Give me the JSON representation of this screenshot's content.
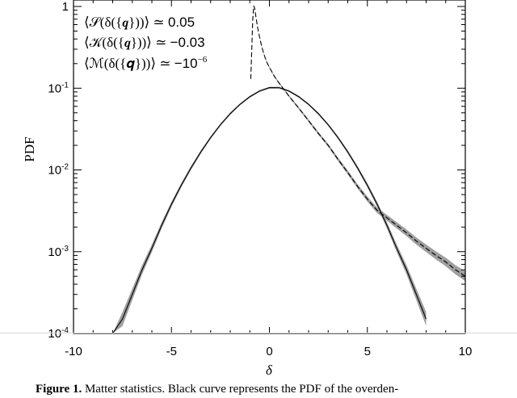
{
  "chart_data": {
    "type": "line",
    "xlabel": "δ",
    "ylabel": "PDF",
    "xlim": [
      -10,
      10
    ],
    "ylim": [
      0.0001,
      1.2
    ],
    "yscale": "log",
    "grid": false,
    "x_ticks": [
      -10,
      -5,
      0,
      5,
      10
    ],
    "x_tick_labels": [
      "-10",
      "-5",
      "0",
      "5",
      "10"
    ],
    "y_ticks": [
      0.0001,
      0.001,
      0.01,
      0.1,
      1
    ],
    "y_tick_labels": [
      {
        "base": "10",
        "exp": "-4"
      },
      {
        "base": "10",
        "exp": "-3"
      },
      {
        "base": "10",
        "exp": "-2"
      },
      {
        "base": "10",
        "exp": "-1"
      },
      {
        "base": "1",
        "exp": ""
      }
    ],
    "annotations": [
      {
        "lhs": "⟨𝒮(δ({𝒒}))⟩ ≃ ",
        "rhs": "0.05"
      },
      {
        "lhs": "⟨𝒦(δ({𝒒}))⟩ ≃ ",
        "rhs": "−0.03"
      },
      {
        "lhs": "⟨ℳ(δ({𝒒}))⟩ ≃ ",
        "rhs": "−10",
        "sup": "−6"
      }
    ],
    "series": [
      {
        "style": "solid",
        "color": "#000000",
        "x": [
          -8.0,
          -7.5,
          -7.0,
          -6.5,
          -6.0,
          -5.5,
          -5.0,
          -4.5,
          -4.0,
          -3.5,
          -3.0,
          -2.5,
          -2.0,
          -1.5,
          -1.0,
          -0.5,
          0.0,
          0.5,
          1.0,
          1.5,
          2.0,
          2.5,
          3.0,
          3.5,
          4.0,
          4.5,
          5.0,
          5.5,
          6.0,
          6.5,
          7.0,
          7.5,
          8.0
        ],
        "y": [
          7e-05,
          0.00015,
          0.0003,
          0.0006,
          0.0011,
          0.0021,
          0.0038,
          0.0065,
          0.0106,
          0.0166,
          0.0249,
          0.0357,
          0.0488,
          0.0635,
          0.0786,
          0.0924,
          0.1015,
          0.1014,
          0.0924,
          0.0786,
          0.0635,
          0.0488,
          0.0357,
          0.0249,
          0.0166,
          0.0106,
          0.0065,
          0.0038,
          0.0021,
          0.0011,
          0.0006,
          0.0003,
          0.00015
        ]
      },
      {
        "style": "dashed",
        "color": "#000000",
        "x": [
          -0.95,
          -0.9,
          -0.85,
          -0.8,
          -0.75,
          -0.7,
          -0.6,
          -0.5,
          -0.4,
          -0.3,
          -0.2,
          -0.1,
          0.0,
          0.25,
          0.5,
          1.0,
          1.5,
          2.0,
          2.5,
          3.0,
          3.5,
          4.0,
          4.5,
          5.0,
          5.5,
          6.0,
          6.5,
          7.0,
          7.5,
          8.0,
          8.5,
          9.0,
          9.5,
          10.0
        ],
        "y": [
          0.13,
          0.3,
          0.7,
          1.02,
          0.95,
          0.78,
          0.55,
          0.42,
          0.33,
          0.27,
          0.23,
          0.2,
          0.18,
          0.14,
          0.115,
          0.08,
          0.057,
          0.04,
          0.028,
          0.02,
          0.0135,
          0.0093,
          0.0063,
          0.0044,
          0.0032,
          0.0026,
          0.0021,
          0.0017,
          0.00135,
          0.0011,
          0.0009,
          0.00075,
          0.0006,
          0.0005
        ]
      }
    ]
  },
  "caption": {
    "bold": "Figure 1.",
    "text": " Matter statistics. Black curve represents the PDF of the overden-"
  }
}
